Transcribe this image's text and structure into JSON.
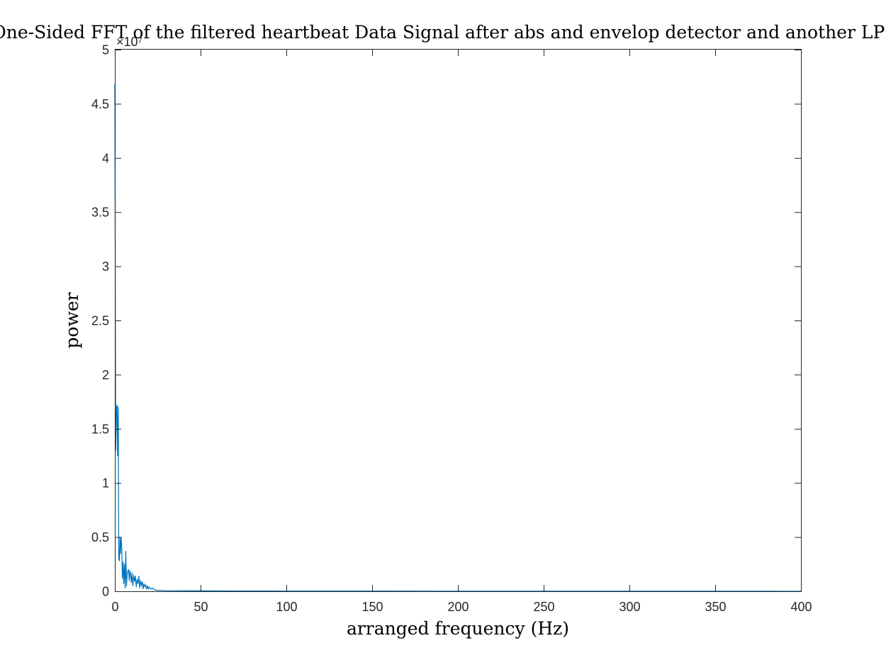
{
  "chart_data": {
    "type": "line",
    "title": "One-Sided FFT of the filtered heartbeat Data Signal after abs and envelop detector and another LPF",
    "xlabel": "arranged frequency (Hz)",
    "ylabel": "power",
    "y_exponent_label": "×10⁷",
    "xlim": [
      0,
      400
    ],
    "ylim": [
      0,
      5
    ],
    "y_multiplier": 10000000,
    "x_ticks": [
      "0",
      "50",
      "100",
      "150",
      "200",
      "250",
      "300",
      "350",
      "400"
    ],
    "y_ticks": [
      "0",
      "0.5",
      "1",
      "1.5",
      "2",
      "2.5",
      "3",
      "3.5",
      "4",
      "4.5",
      "5"
    ],
    "grid": false,
    "line_color": "#0072BD",
    "series": [
      {
        "x": [
          0,
          0.5,
          1,
          1.3,
          1.6,
          2,
          2.3,
          2.7,
          3,
          3.3,
          3.7,
          4,
          4.4,
          4.8,
          5.2,
          5.6,
          6,
          6.4,
          6.8,
          7.2,
          7.6,
          8,
          8.4,
          8.8,
          9.2,
          9.6,
          10,
          10.5,
          11,
          11.5,
          12,
          12.5,
          13,
          13.5,
          14,
          14.5,
          15,
          15.5,
          16,
          16.5,
          17,
          17.5,
          18,
          18.5,
          19,
          19.5,
          20,
          21,
          22,
          23,
          24,
          26,
          30,
          40,
          50,
          70,
          100,
          150,
          200,
          250,
          300,
          350,
          400
        ],
        "values": [
          4.68,
          1.3,
          1.7,
          1.72,
          1.25,
          1.7,
          0.3,
          0.28,
          0.5,
          0.35,
          0.5,
          0.42,
          0.12,
          0.27,
          0.07,
          0.25,
          0.03,
          0.37,
          0.05,
          0.16,
          0.19,
          0.2,
          0.1,
          0.19,
          0.15,
          0.08,
          0.17,
          0.05,
          0.15,
          0.09,
          0.14,
          0.04,
          0.11,
          0.07,
          0.14,
          0.03,
          0.1,
          0.05,
          0.09,
          0.02,
          0.07,
          0.04,
          0.06,
          0.02,
          0.05,
          0.02,
          0.04,
          0.02,
          0.03,
          0.015,
          0.01,
          0.008,
          0.006,
          0.005,
          0.004,
          0.003,
          0.002,
          0.0015,
          0.001,
          0.001,
          0.0008,
          0.0006,
          0.0005
        ]
      }
    ]
  }
}
